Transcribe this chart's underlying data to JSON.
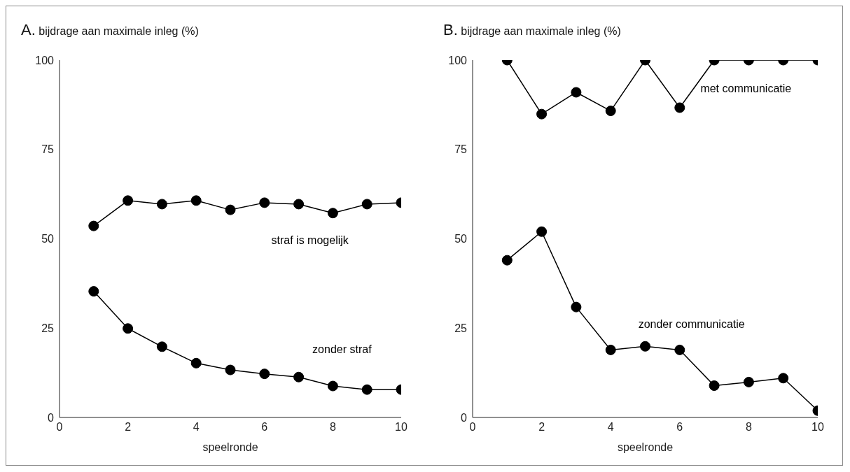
{
  "chart_data": [
    {
      "type": "line",
      "title": "A. bijdrage aan maximale inleg (%)",
      "xlabel": "speelronde",
      "x": [
        1,
        2,
        3,
        4,
        5,
        6,
        7,
        8,
        9,
        10
      ],
      "xlim": [
        0,
        10
      ],
      "xticks": [
        0,
        2,
        4,
        6,
        8,
        10
      ],
      "ylim": [
        0,
        100
      ],
      "yticks": [
        0,
        25,
        50,
        75,
        100
      ],
      "grid": false,
      "legend": false,
      "marker": "circle",
      "line_style": "solid",
      "series": [
        {
          "name": "straf is mogelijk",
          "color": "#000000",
          "values": [
            53.6,
            60.7,
            59.7,
            60.7,
            58.1,
            60.1,
            59.7,
            57.2,
            59.7,
            60.1
          ]
        },
        {
          "name": "zonder straf",
          "color": "#000000",
          "values": [
            35.3,
            24.9,
            19.8,
            15.2,
            13.3,
            12.2,
            11.3,
            8.8,
            7.8,
            7.8
          ]
        }
      ]
    },
    {
      "type": "line",
      "title": "B. bijdrage aan maximale inleg (%)",
      "xlabel": "speelronde",
      "x": [
        1,
        2,
        3,
        4,
        5,
        6,
        7,
        8,
        9,
        10
      ],
      "xlim": [
        0,
        10
      ],
      "xticks": [
        0,
        2,
        4,
        6,
        8,
        10
      ],
      "ylim": [
        0,
        100
      ],
      "yticks": [
        0,
        25,
        50,
        75,
        100
      ],
      "grid": false,
      "legend": false,
      "marker": "circle",
      "line_style": "solid",
      "series": [
        {
          "name": "met communicatie",
          "color": "#000000",
          "values": [
            100,
            84.9,
            91,
            85.8,
            100,
            86.7,
            100,
            100,
            100,
            100
          ]
        },
        {
          "name": "zonder communicatie",
          "color": "#000000",
          "values": [
            44,
            52,
            30.9,
            18.9,
            19.9,
            18.9,
            8.9,
            9.9,
            11,
            1.9
          ]
        }
      ]
    }
  ]
}
